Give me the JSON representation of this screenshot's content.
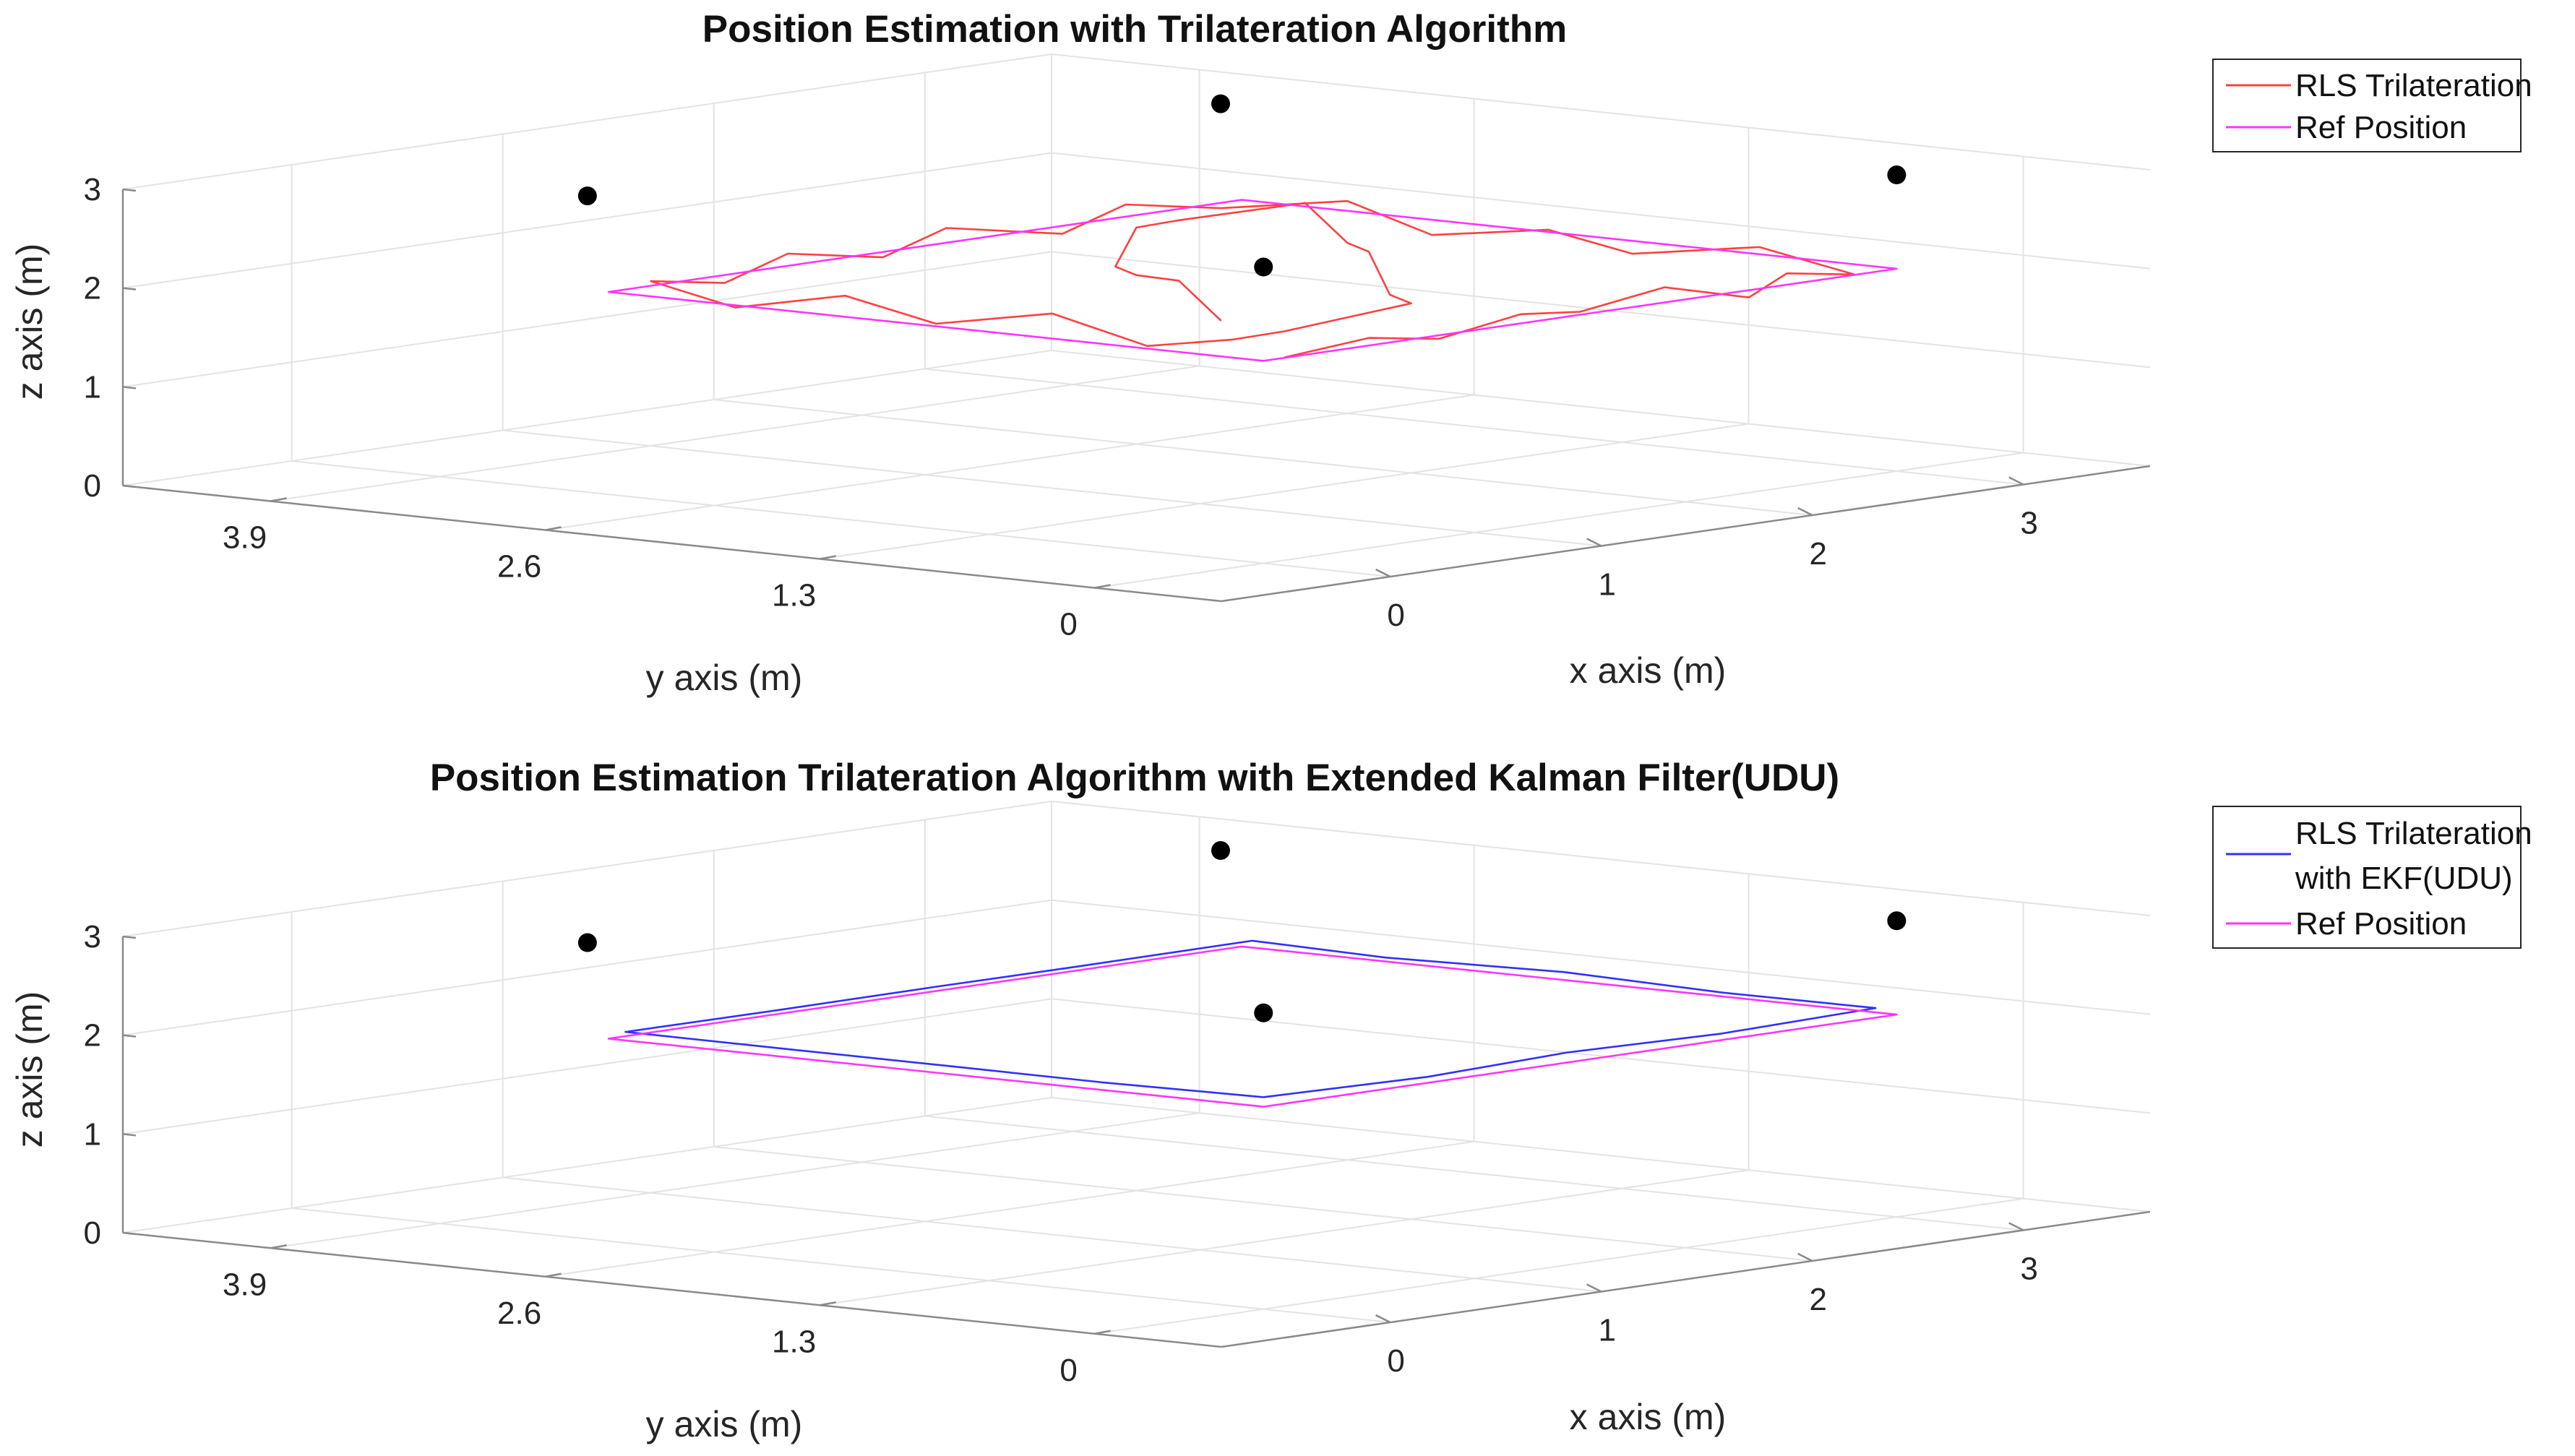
{
  "chart_data": [
    {
      "type": "line3d",
      "title": "Position Estimation with Trilateration Algorithm",
      "xlabel": "x axis (m)",
      "ylabel": "y axis (m)",
      "zlabel": "z axis (m)",
      "xlim": [
        -0.8,
        3.6
      ],
      "ylim": [
        -0.6,
        4.6
      ],
      "zlim": [
        0,
        3
      ],
      "x_ticks": [
        "0",
        "1",
        "2",
        "3"
      ],
      "y_ticks": [
        "3.9",
        "2.6",
        "1.3",
        "0"
      ],
      "z_ticks": [
        "0",
        "1",
        "2",
        "3"
      ],
      "grid": true,
      "legend_position": "top-right outside",
      "legend": [
        "RLS Trilateration",
        "Ref Position"
      ],
      "anchors": [
        {
          "x": 0,
          "y": 3.2,
          "z": 3.0
        },
        {
          "x": 0,
          "y": 0,
          "z": 3.0
        },
        {
          "x": 3,
          "y": 3.2,
          "z": 3.0
        },
        {
          "x": 3,
          "y": 0,
          "z": 3.0
        }
      ],
      "series": [
        {
          "name": "RLS Trilateration",
          "color": "#ff4040",
          "points": [
            [
              0.2,
              0.1,
              2.0
            ],
            [
              0.55,
              0.05,
              2.1
            ],
            [
              0.95,
              0.12,
              1.95
            ],
            [
              1.3,
              0.08,
              2.1
            ],
            [
              1.65,
              0.15,
              2.0
            ],
            [
              2.0,
              0.1,
              2.15
            ],
            [
              2.35,
              0.05,
              1.95
            ],
            [
              2.6,
              0.12,
              2.1
            ],
            [
              2.9,
              0.1,
              2.0
            ],
            [
              2.95,
              0.6,
              2.15
            ],
            [
              2.85,
              1.1,
              2.0
            ],
            [
              2.95,
              1.6,
              2.1
            ],
            [
              2.9,
              2.1,
              1.95
            ],
            [
              3.0,
              2.6,
              2.15
            ],
            [
              2.8,
              3.0,
              2.05
            ],
            [
              2.4,
              3.05,
              2.2
            ],
            [
              2.0,
              2.95,
              2.05
            ],
            [
              1.6,
              3.1,
              2.2
            ],
            [
              1.2,
              3.0,
              2.05
            ],
            [
              0.8,
              3.05,
              2.2
            ],
            [
              0.4,
              2.95,
              2.05
            ],
            [
              0.1,
              3.0,
              2.15
            ],
            [
              0.05,
              2.55,
              2.0
            ],
            [
              0.12,
              2.1,
              2.2
            ],
            [
              0.05,
              1.6,
              2.05
            ],
            [
              0.1,
              1.1,
              2.25
            ],
            [
              0.05,
              0.6,
              2.05
            ],
            [
              0.15,
              0.3,
              2.15
            ],
            [
              0.6,
              0.5,
              2.05
            ],
            [
              1.1,
              0.4,
              2.2
            ],
            [
              1.5,
              0.9,
              2.05
            ],
            [
              1.9,
              1.4,
              2.25
            ],
            [
              2.3,
              1.9,
              2.1
            ],
            [
              2.6,
              2.4,
              2.3
            ],
            [
              2.3,
              2.7,
              2.15
            ],
            [
              1.8,
              2.4,
              2.3
            ],
            [
              1.3,
              2.0,
              2.15
            ],
            [
              0.9,
              1.5,
              2.3
            ],
            [
              0.6,
              1.0,
              2.45
            ],
            [
              0.3,
              0.5,
              2.25
            ]
          ]
        },
        {
          "name": "Ref Position",
          "color": "#ff33ff",
          "points": [
            [
              0.0,
              0.0,
              2.05
            ],
            [
              1.5,
              0.0,
              2.05
            ],
            [
              3.0,
              0.0,
              2.05
            ],
            [
              3.0,
              1.6,
              2.05
            ],
            [
              3.0,
              3.1,
              2.05
            ],
            [
              1.5,
              3.1,
              2.05
            ],
            [
              0.0,
              3.1,
              2.05
            ],
            [
              0.0,
              1.6,
              2.05
            ],
            [
              0.0,
              0.0,
              2.05
            ]
          ]
        }
      ]
    },
    {
      "type": "line3d",
      "title": "Position Estimation Trilateration Algorithm with Extended Kalman Filter(UDU)",
      "xlabel": "x axis (m)",
      "ylabel": "y axis (m)",
      "zlabel": "z axis (m)",
      "xlim": [
        -0.8,
        3.6
      ],
      "ylim": [
        -0.6,
        4.6
      ],
      "zlim": [
        0,
        3
      ],
      "x_ticks": [
        "0",
        "1",
        "2",
        "3"
      ],
      "y_ticks": [
        "3.9",
        "2.6",
        "1.3",
        "0"
      ],
      "z_ticks": [
        "0",
        "1",
        "2",
        "3"
      ],
      "grid": true,
      "legend_position": "top-right outside",
      "legend": [
        "RLS Trilateration with EKF(UDU)",
        "Ref Position"
      ],
      "anchors": [
        {
          "x": 0,
          "y": 3.2,
          "z": 3.0
        },
        {
          "x": 0,
          "y": 0,
          "z": 3.0
        },
        {
          "x": 3,
          "y": 3.2,
          "z": 3.0
        },
        {
          "x": 3,
          "y": 0,
          "z": 3.0
        }
      ],
      "series": [
        {
          "name": "RLS Trilateration with EKF(UDU)",
          "color": "#3030ff",
          "points": [
            [
              0.05,
              0.05,
              2.12
            ],
            [
              0.8,
              0.02,
              2.1
            ],
            [
              1.5,
              0.06,
              2.12
            ],
            [
              2.2,
              0.03,
              2.1
            ],
            [
              2.95,
              0.05,
              2.12
            ],
            [
              2.98,
              0.8,
              2.1
            ],
            [
              3.02,
              1.6,
              2.12
            ],
            [
              2.98,
              2.4,
              2.1
            ],
            [
              3.0,
              3.05,
              2.12
            ],
            [
              2.2,
              3.08,
              2.1
            ],
            [
              1.5,
              3.05,
              2.12
            ],
            [
              0.8,
              3.08,
              2.1
            ],
            [
              0.03,
              3.05,
              2.12
            ],
            [
              0.06,
              2.3,
              2.1
            ],
            [
              0.02,
              1.5,
              2.12
            ],
            [
              0.05,
              0.8,
              2.1
            ],
            [
              0.05,
              0.05,
              2.12
            ]
          ]
        },
        {
          "name": "Ref Position",
          "color": "#ff33ff",
          "points": [
            [
              0.0,
              0.0,
              2.05
            ],
            [
              1.5,
              0.0,
              2.05
            ],
            [
              3.0,
              0.0,
              2.05
            ],
            [
              3.0,
              1.6,
              2.05
            ],
            [
              3.0,
              3.1,
              2.05
            ],
            [
              1.5,
              3.1,
              2.05
            ],
            [
              0.0,
              3.1,
              2.05
            ],
            [
              0.0,
              1.6,
              2.05
            ],
            [
              0.0,
              0.0,
              2.05
            ]
          ]
        }
      ]
    }
  ]
}
